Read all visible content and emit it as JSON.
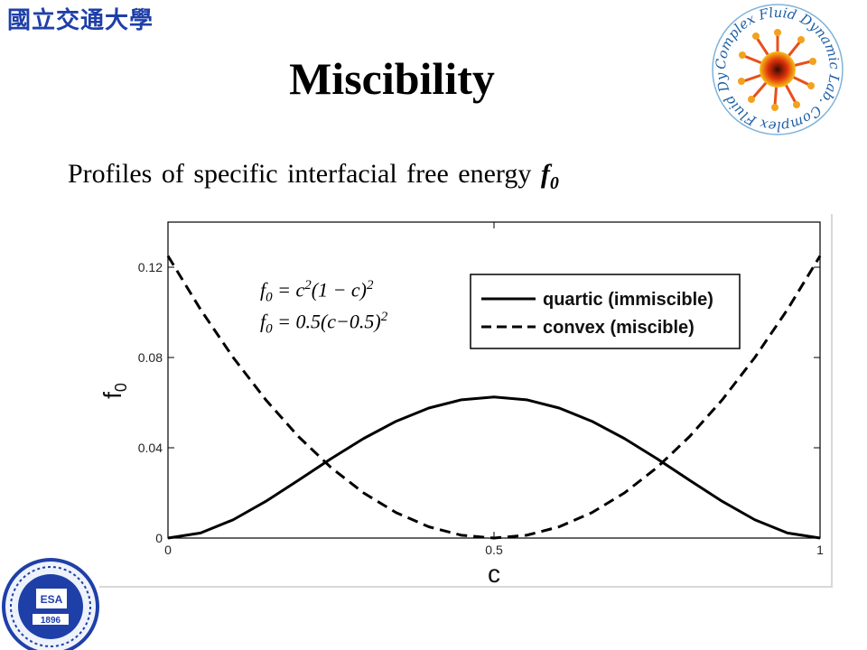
{
  "header": {
    "university_name": "國立交通大學",
    "title": "Miscibility",
    "subtitle_text": "Profiles of specific interfacial free energy",
    "subtitle_symbol": "f",
    "subtitle_symbol_sub": "0"
  },
  "lab_logo": {
    "text": "Complex Fluid Dynamic Lab. Complex Fluid Dynamic Lab."
  },
  "seal": {
    "text": "ESA",
    "year": "1896"
  },
  "formulas": {
    "quartic": {
      "lhs": "f",
      "lhs_sub": "0",
      "mid": " = c",
      "exp1": "2",
      "mid2": "(1 − c)",
      "exp2": "2"
    },
    "convex": {
      "lhs": "f",
      "lhs_sub": "0",
      "mid": " = 0.5(c−0.5)",
      "exp1": "2"
    }
  },
  "chart_data": {
    "type": "line",
    "title": "",
    "xlabel": "c",
    "ylabel": "f",
    "ylabel_sub": "0",
    "xlim": [
      0,
      1
    ],
    "ylim": [
      0,
      0.14
    ],
    "xticks": [
      0,
      0.5,
      1
    ],
    "xtick_labels": [
      "0",
      "0.5",
      "1"
    ],
    "yticks": [
      0,
      0.04,
      0.08,
      0.12
    ],
    "ytick_labels": [
      "0",
      "0.04",
      "0.08",
      "0.12"
    ],
    "legend_position": "top-right",
    "grid": false,
    "series": [
      {
        "name": "quartic (immiscible)",
        "style": "solid",
        "x": [
          0,
          0.05,
          0.1,
          0.15,
          0.2,
          0.25,
          0.3,
          0.35,
          0.4,
          0.45,
          0.5,
          0.55,
          0.6,
          0.65,
          0.7,
          0.75,
          0.8,
          0.85,
          0.9,
          0.95,
          1
        ],
        "values": [
          0,
          0.00226,
          0.0081,
          0.01626,
          0.0256,
          0.03516,
          0.0441,
          0.05176,
          0.0576,
          0.06126,
          0.0625,
          0.06126,
          0.0576,
          0.05176,
          0.0441,
          0.03516,
          0.0256,
          0.01626,
          0.0081,
          0.00226,
          0
        ]
      },
      {
        "name": "convex (miscible)",
        "style": "dashed",
        "x": [
          0,
          0.05,
          0.1,
          0.15,
          0.2,
          0.25,
          0.3,
          0.35,
          0.4,
          0.45,
          0.5,
          0.55,
          0.6,
          0.65,
          0.7,
          0.75,
          0.8,
          0.85,
          0.9,
          0.95,
          1
        ],
        "values": [
          0.125,
          0.10125,
          0.08,
          0.06125,
          0.045,
          0.03125,
          0.02,
          0.01125,
          0.005,
          0.00125,
          0,
          0.00125,
          0.005,
          0.01125,
          0.02,
          0.03125,
          0.045,
          0.06125,
          0.08,
          0.10125,
          0.125
        ]
      }
    ]
  }
}
